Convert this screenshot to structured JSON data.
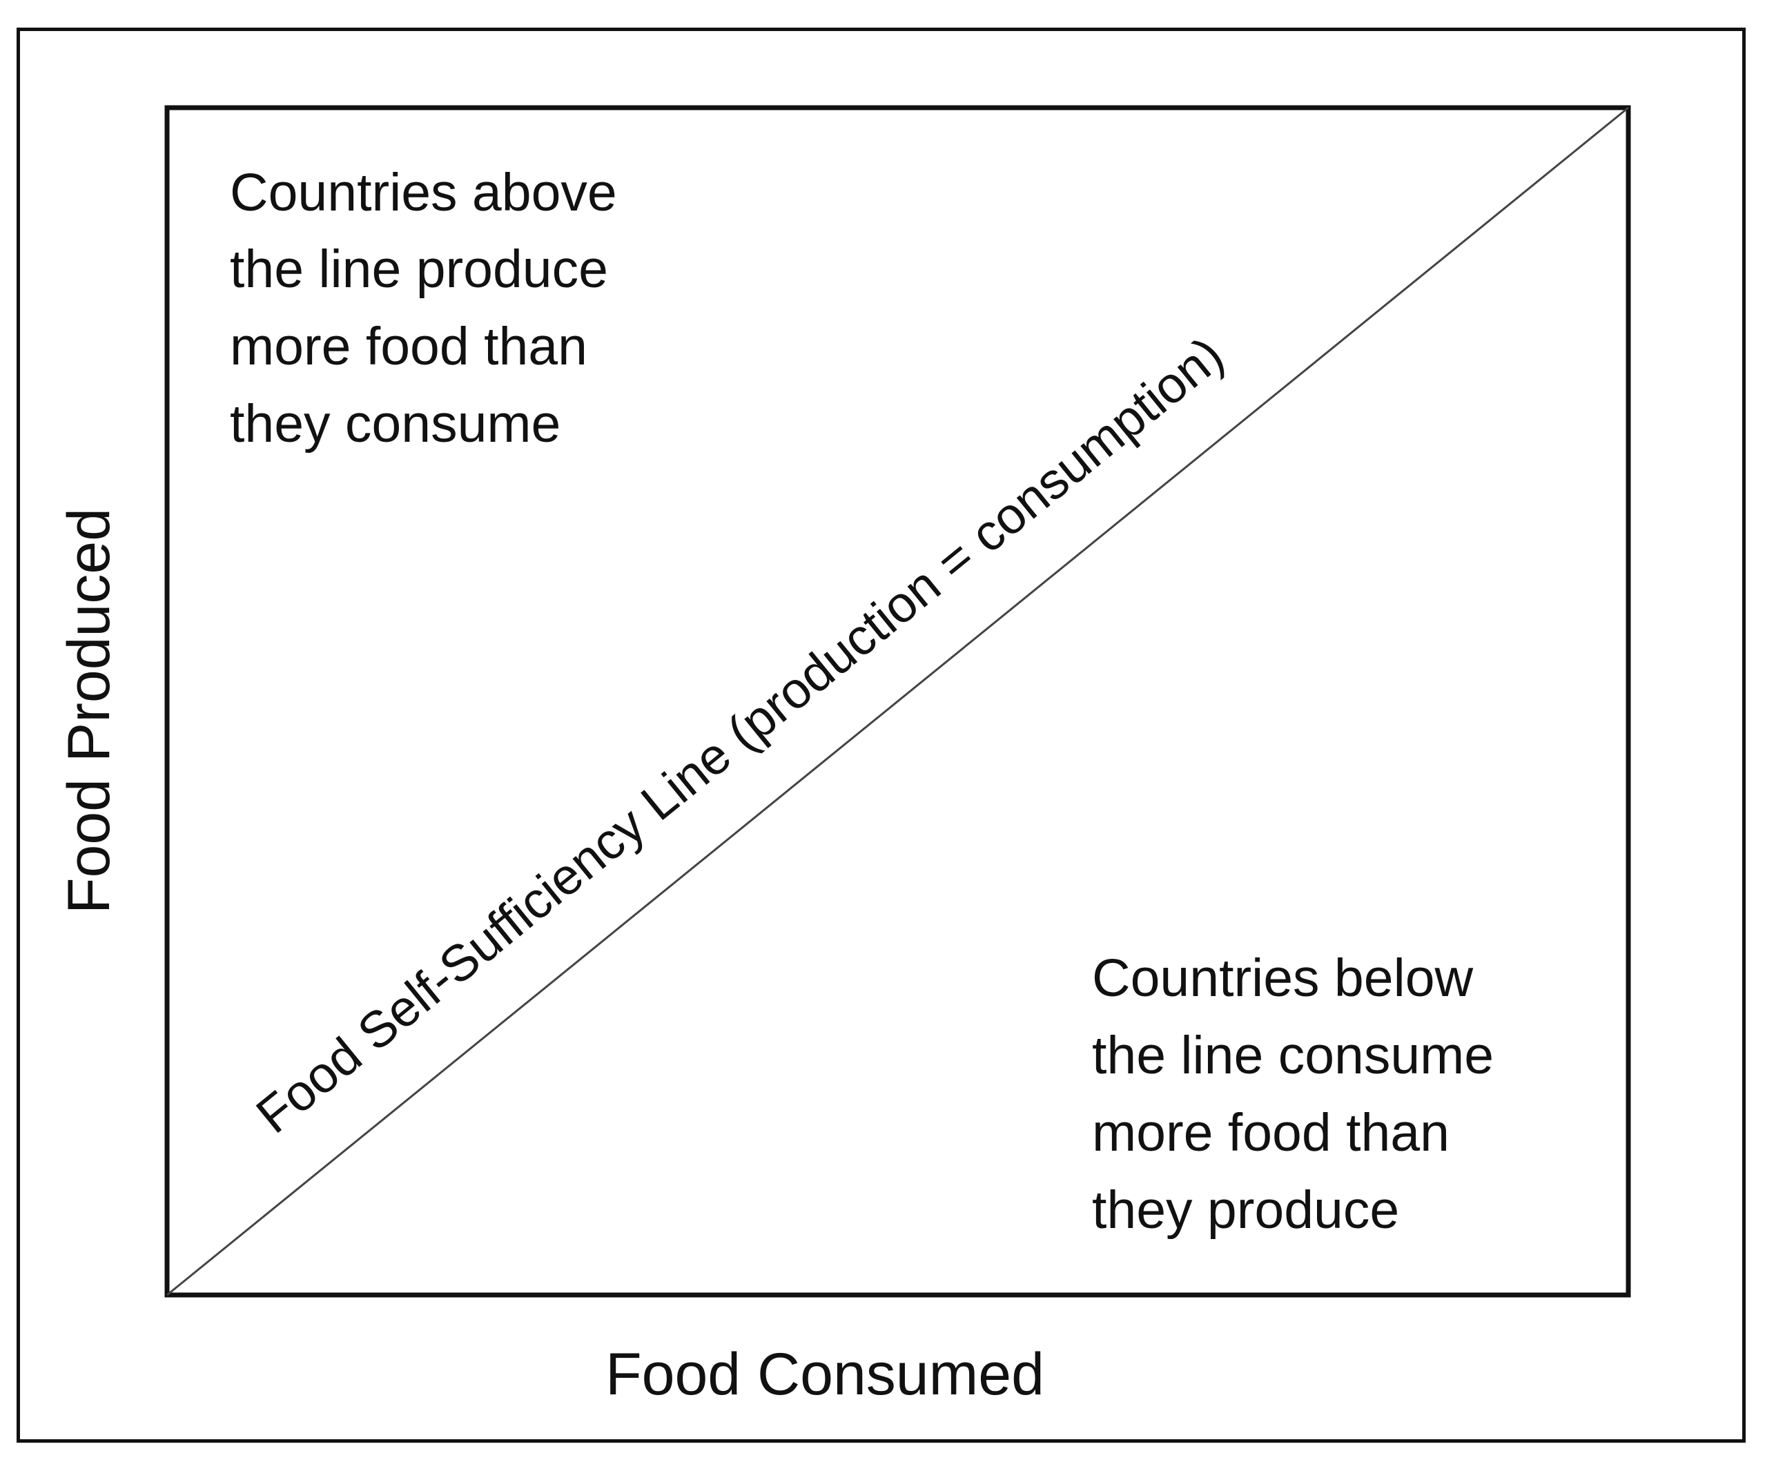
{
  "diagram": {
    "x_axis_label": "Food Consumed",
    "y_axis_label": "Food Produced",
    "diagonal_label": "Food Self-Sufficiency Line (production = consumption)",
    "upper_region_lines": [
      "Countries above",
      "the line produce",
      "more food than",
      "they consume"
    ],
    "lower_region_lines": [
      "Countries below",
      "the line consume",
      "more food than",
      "they produce"
    ],
    "colors": {
      "line": "#111111",
      "background": "#ffffff",
      "diagonal": "#444444"
    }
  }
}
